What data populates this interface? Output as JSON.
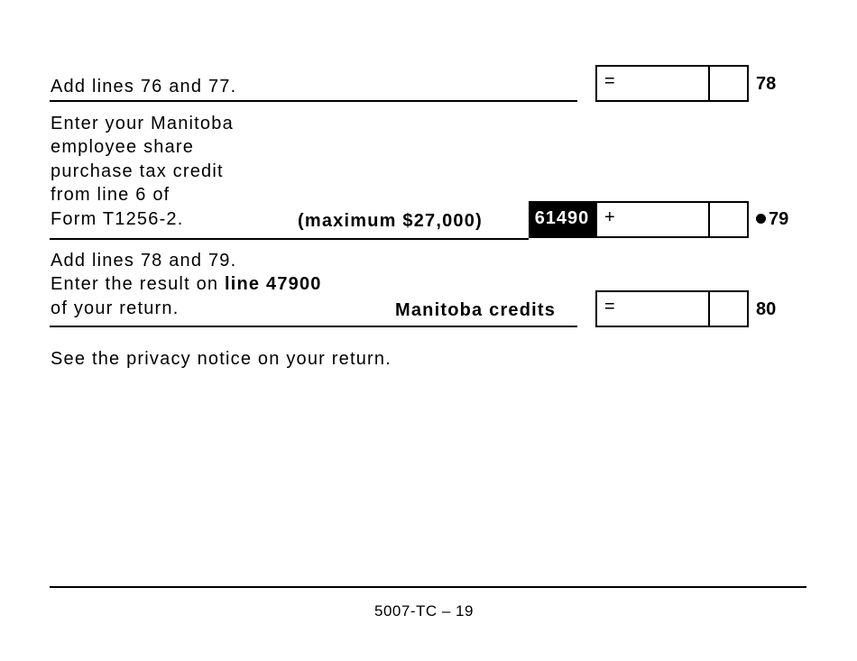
{
  "line78": {
    "text": "Add lines 76 and 77.",
    "operator": "=",
    "line_number": "78"
  },
  "line79": {
    "text_lines": [
      "Enter your Manitoba",
      "employee share",
      "purchase tax credit",
      "from line 6 of",
      "Form T1256-2."
    ],
    "note": "(maximum $27,000)",
    "code": "61490",
    "operator": "+",
    "line_number": "79"
  },
  "line80": {
    "text_lines": [
      "Add lines 78 and 79.",
      "Enter the result on ",
      "of your return."
    ],
    "bold_ref": "line 47900",
    "label": "Manitoba credits",
    "operator": "=",
    "line_number": "80"
  },
  "privacy": "See the privacy notice on your return.",
  "footer": "5007-TC – 19"
}
